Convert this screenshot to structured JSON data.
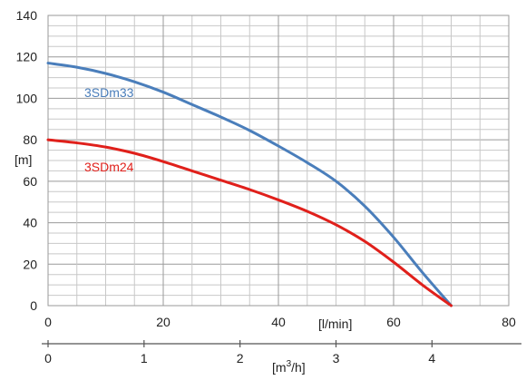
{
  "chart_data": {
    "type": "line",
    "title": "",
    "x_axis_primary": {
      "label": "[l/min]",
      "range": [
        0,
        80
      ],
      "ticks": [
        0,
        20,
        40,
        60,
        80
      ]
    },
    "x_axis_secondary": {
      "label": "[m³/h]",
      "label_base": "[m",
      "label_sup": "3",
      "label_tail": "/h]",
      "range_in_lmin": [
        0,
        80
      ],
      "ticks": [
        0,
        1,
        2,
        3,
        4
      ]
    },
    "y_axis": {
      "label": "[m]",
      "range": [
        0,
        140
      ],
      "ticks": [
        0,
        20,
        40,
        60,
        80,
        100,
        120,
        140
      ]
    },
    "grid": true,
    "series": [
      {
        "name": "3SDm33",
        "color": "#4a7ebb",
        "x": [
          0,
          5,
          10,
          15,
          20,
          25,
          30,
          35,
          40,
          45,
          50,
          55,
          60,
          65,
          70
        ],
        "y": [
          117,
          115,
          112,
          108,
          103,
          97,
          91,
          84.5,
          77,
          69,
          60,
          48,
          33,
          16,
          0
        ]
      },
      {
        "name": "3SDm24",
        "color": "#e0201b",
        "x": [
          0,
          5,
          10,
          15,
          20,
          25,
          30,
          35,
          40,
          45,
          50,
          55,
          60,
          65,
          70
        ],
        "y": [
          80,
          78.5,
          76.5,
          73.5,
          69.5,
          65,
          60.5,
          56,
          51,
          45.5,
          39,
          31,
          21,
          10,
          0
        ]
      }
    ]
  }
}
